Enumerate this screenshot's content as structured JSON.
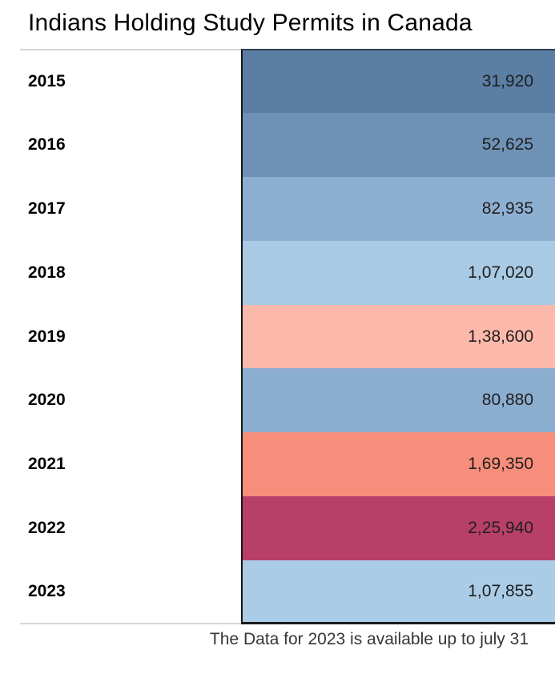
{
  "chart_data": {
    "type": "heatmap",
    "title": "Indians Holding Study Permits in Canada",
    "categories": [
      "2015",
      "2016",
      "2017",
      "2018",
      "2019",
      "2020",
      "2021",
      "2022",
      "2023"
    ],
    "values": [
      31920,
      52625,
      82935,
      107020,
      138600,
      80880,
      169350,
      225940,
      107855
    ],
    "value_labels": [
      "31,920",
      "52,625",
      "82,935",
      "1,07,020",
      "1,38,600",
      "80,880",
      "1,69,350",
      "2,25,940",
      "1,07,855"
    ],
    "number_format": "indian-digit-grouping",
    "row_colors": [
      "#5A7EA4",
      "#6E92B6",
      "#8DB0D2",
      "#A8CAE4",
      "#FCB8AA",
      "#8BADCF",
      "#F78D7B",
      "#B83F68",
      "#AACCE6"
    ],
    "palette": "red-blue-diverging",
    "legend": "none",
    "grid": "off",
    "annotation": "The Data for 2023 is available up to july 31"
  }
}
